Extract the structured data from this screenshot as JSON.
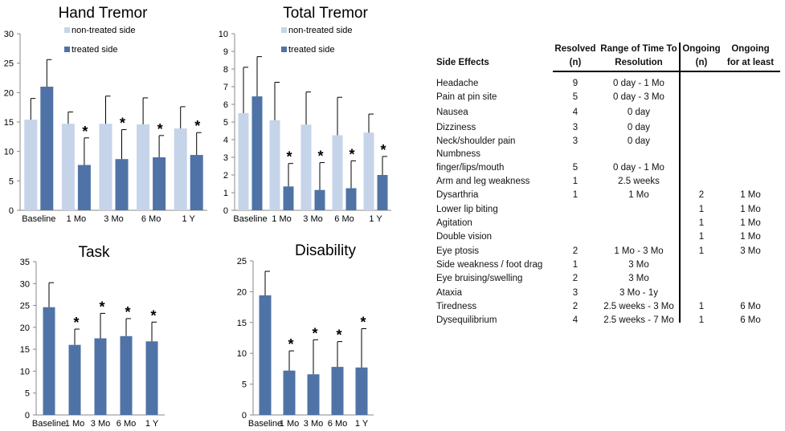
{
  "colors": {
    "non_treated": "#c6d4ea",
    "treated": "#4f73a6",
    "error_bar": "#000000"
  },
  "chart_data": [
    {
      "type": "bar",
      "title": "Hand Tremor",
      "categories": [
        "Baseline",
        "1 Mo",
        "3 Mo",
        "6 Mo",
        "1 Y"
      ],
      "ylim": [
        0,
        30
      ],
      "yticks": [
        0,
        5,
        10,
        15,
        20,
        25,
        30
      ],
      "legend": "top",
      "grid": false,
      "series": [
        {
          "name": "non-treated side",
          "values": [
            15.4,
            14.7,
            14.7,
            14.6,
            13.9
          ],
          "error_top": [
            19.0,
            16.7,
            19.4,
            19.1,
            17.6
          ]
        },
        {
          "name": "treated side",
          "values": [
            21.0,
            7.7,
            8.7,
            9.0,
            9.4
          ],
          "error_top": [
            25.6,
            12.3,
            13.7,
            12.7,
            13.2
          ]
        }
      ],
      "significance_marks": [
        "",
        "*",
        "*",
        "*",
        "*"
      ]
    },
    {
      "type": "bar",
      "title": "Total Tremor",
      "categories": [
        "Baseline",
        "1 Mo",
        "3 Mo",
        "6 Mo",
        "1 Y"
      ],
      "ylim": [
        0,
        10
      ],
      "yticks": [
        0,
        1,
        2,
        3,
        4,
        5,
        6,
        7,
        8,
        9,
        10
      ],
      "legend": "top",
      "grid": false,
      "series": [
        {
          "name": "non-treated side",
          "values": [
            5.5,
            5.1,
            4.85,
            4.25,
            4.4
          ],
          "error_top": [
            8.1,
            7.25,
            6.7,
            6.4,
            5.45
          ]
        },
        {
          "name": "treated side",
          "values": [
            6.45,
            1.35,
            1.15,
            1.25,
            2.0
          ],
          "error_top": [
            8.7,
            2.65,
            2.7,
            2.8,
            3.05
          ]
        }
      ],
      "significance_marks": [
        "",
        "*",
        "*",
        "*",
        "*"
      ]
    },
    {
      "type": "bar",
      "title": "Task",
      "categories": [
        "Baseline",
        "1 Mo",
        "3 Mo",
        "6 Mo",
        "1 Y"
      ],
      "ylim": [
        0,
        35
      ],
      "yticks": [
        0,
        5,
        10,
        15,
        20,
        25,
        30,
        35
      ],
      "grid": false,
      "series": [
        {
          "values": [
            24.6,
            16.0,
            17.5,
            18.0,
            16.8
          ],
          "error_top": [
            30.2,
            19.6,
            23.2,
            22.0,
            21.2
          ]
        }
      ],
      "significance_marks": [
        "",
        "*",
        "*",
        "*",
        "*"
      ]
    },
    {
      "type": "bar",
      "title": "Disability",
      "categories": [
        "Baseline",
        "1 Mo",
        "3 Mo",
        "6 Mo",
        "1 Y"
      ],
      "ylim": [
        0,
        25
      ],
      "yticks": [
        0,
        5,
        10,
        15,
        20,
        25
      ],
      "grid": false,
      "series": [
        {
          "values": [
            19.4,
            7.2,
            6.6,
            7.8,
            7.7
          ],
          "error_top": [
            23.3,
            10.4,
            12.2,
            11.9,
            14.0
          ]
        }
      ],
      "significance_marks": [
        "",
        "*",
        "*",
        "*",
        "*"
      ]
    }
  ],
  "table": {
    "headers": {
      "side_effects": "Side Effects",
      "resolved_1": "Resolved",
      "resolved_2": "(n)",
      "range_1": "Range of Time To",
      "range_2": "Resolution",
      "ongoing_1": "Ongoing",
      "ongoing_2": "(n)",
      "atleast_1": "Ongoing",
      "atleast_2": "for at least"
    },
    "rows": [
      {
        "effect": "Headache",
        "resolved": "9",
        "range": "0 day - 1 Mo",
        "ongoing": "",
        "at_least": ""
      },
      {
        "effect": "Pain at pin site",
        "resolved": "5",
        "range": "0 day - 3 Mo",
        "ongoing": "",
        "at_least": ""
      },
      {
        "effect": "Nausea",
        "resolved": "4",
        "range": "0 day",
        "ongoing": "",
        "at_least": ""
      },
      {
        "effect": "Dizziness",
        "resolved": "3",
        "range": "0 day",
        "ongoing": "",
        "at_least": ""
      },
      {
        "effect": "Neck/shoulder pain",
        "resolved": "3",
        "range": "0 day",
        "ongoing": "",
        "at_least": ""
      },
      {
        "effect": "Numbness",
        "resolved": "",
        "range": "",
        "ongoing": "",
        "at_least": ""
      },
      {
        "effect": "finger/lips/mouth",
        "resolved": "5",
        "range": "0 day - 1 Mo",
        "ongoing": "",
        "at_least": ""
      },
      {
        "effect": "Arm and leg weakness",
        "resolved": "1",
        "range": "2.5 weeks",
        "ongoing": "",
        "at_least": ""
      },
      {
        "effect": "Dysarthria",
        "resolved": "1",
        "range": "1 Mo",
        "ongoing": "2",
        "at_least": "1 Mo"
      },
      {
        "effect": "Lower lip biting",
        "resolved": "",
        "range": "",
        "ongoing": "1",
        "at_least": "1 Mo"
      },
      {
        "effect": "Agitation",
        "resolved": "",
        "range": "",
        "ongoing": "1",
        "at_least": "1 Mo"
      },
      {
        "effect": "Double vision",
        "resolved": "",
        "range": "",
        "ongoing": "1",
        "at_least": "1 Mo"
      },
      {
        "effect": "Eye ptosis",
        "resolved": "2",
        "range": "1 Mo - 3 Mo",
        "ongoing": "1",
        "at_least": "3 Mo"
      },
      {
        "effect": "Side weakness / foot drag",
        "resolved": "1",
        "range": "3 Mo",
        "ongoing": "",
        "at_least": ""
      },
      {
        "effect": "Eye bruising/swelling",
        "resolved": "2",
        "range": "3 Mo",
        "ongoing": "",
        "at_least": ""
      },
      {
        "effect": "Ataxia",
        "resolved": "3",
        "range": "3 Mo - 1y",
        "ongoing": "",
        "at_least": ""
      },
      {
        "effect": "Tiredness",
        "resolved": "2",
        "range": "2.5 weeks - 3 Mo",
        "ongoing": "1",
        "at_least": "6 Mo"
      },
      {
        "effect": "Dysequilibrium",
        "resolved": "4",
        "range": "2.5 weeks - 7 Mo",
        "ongoing": "1",
        "at_least": "6 Mo"
      }
    ]
  }
}
